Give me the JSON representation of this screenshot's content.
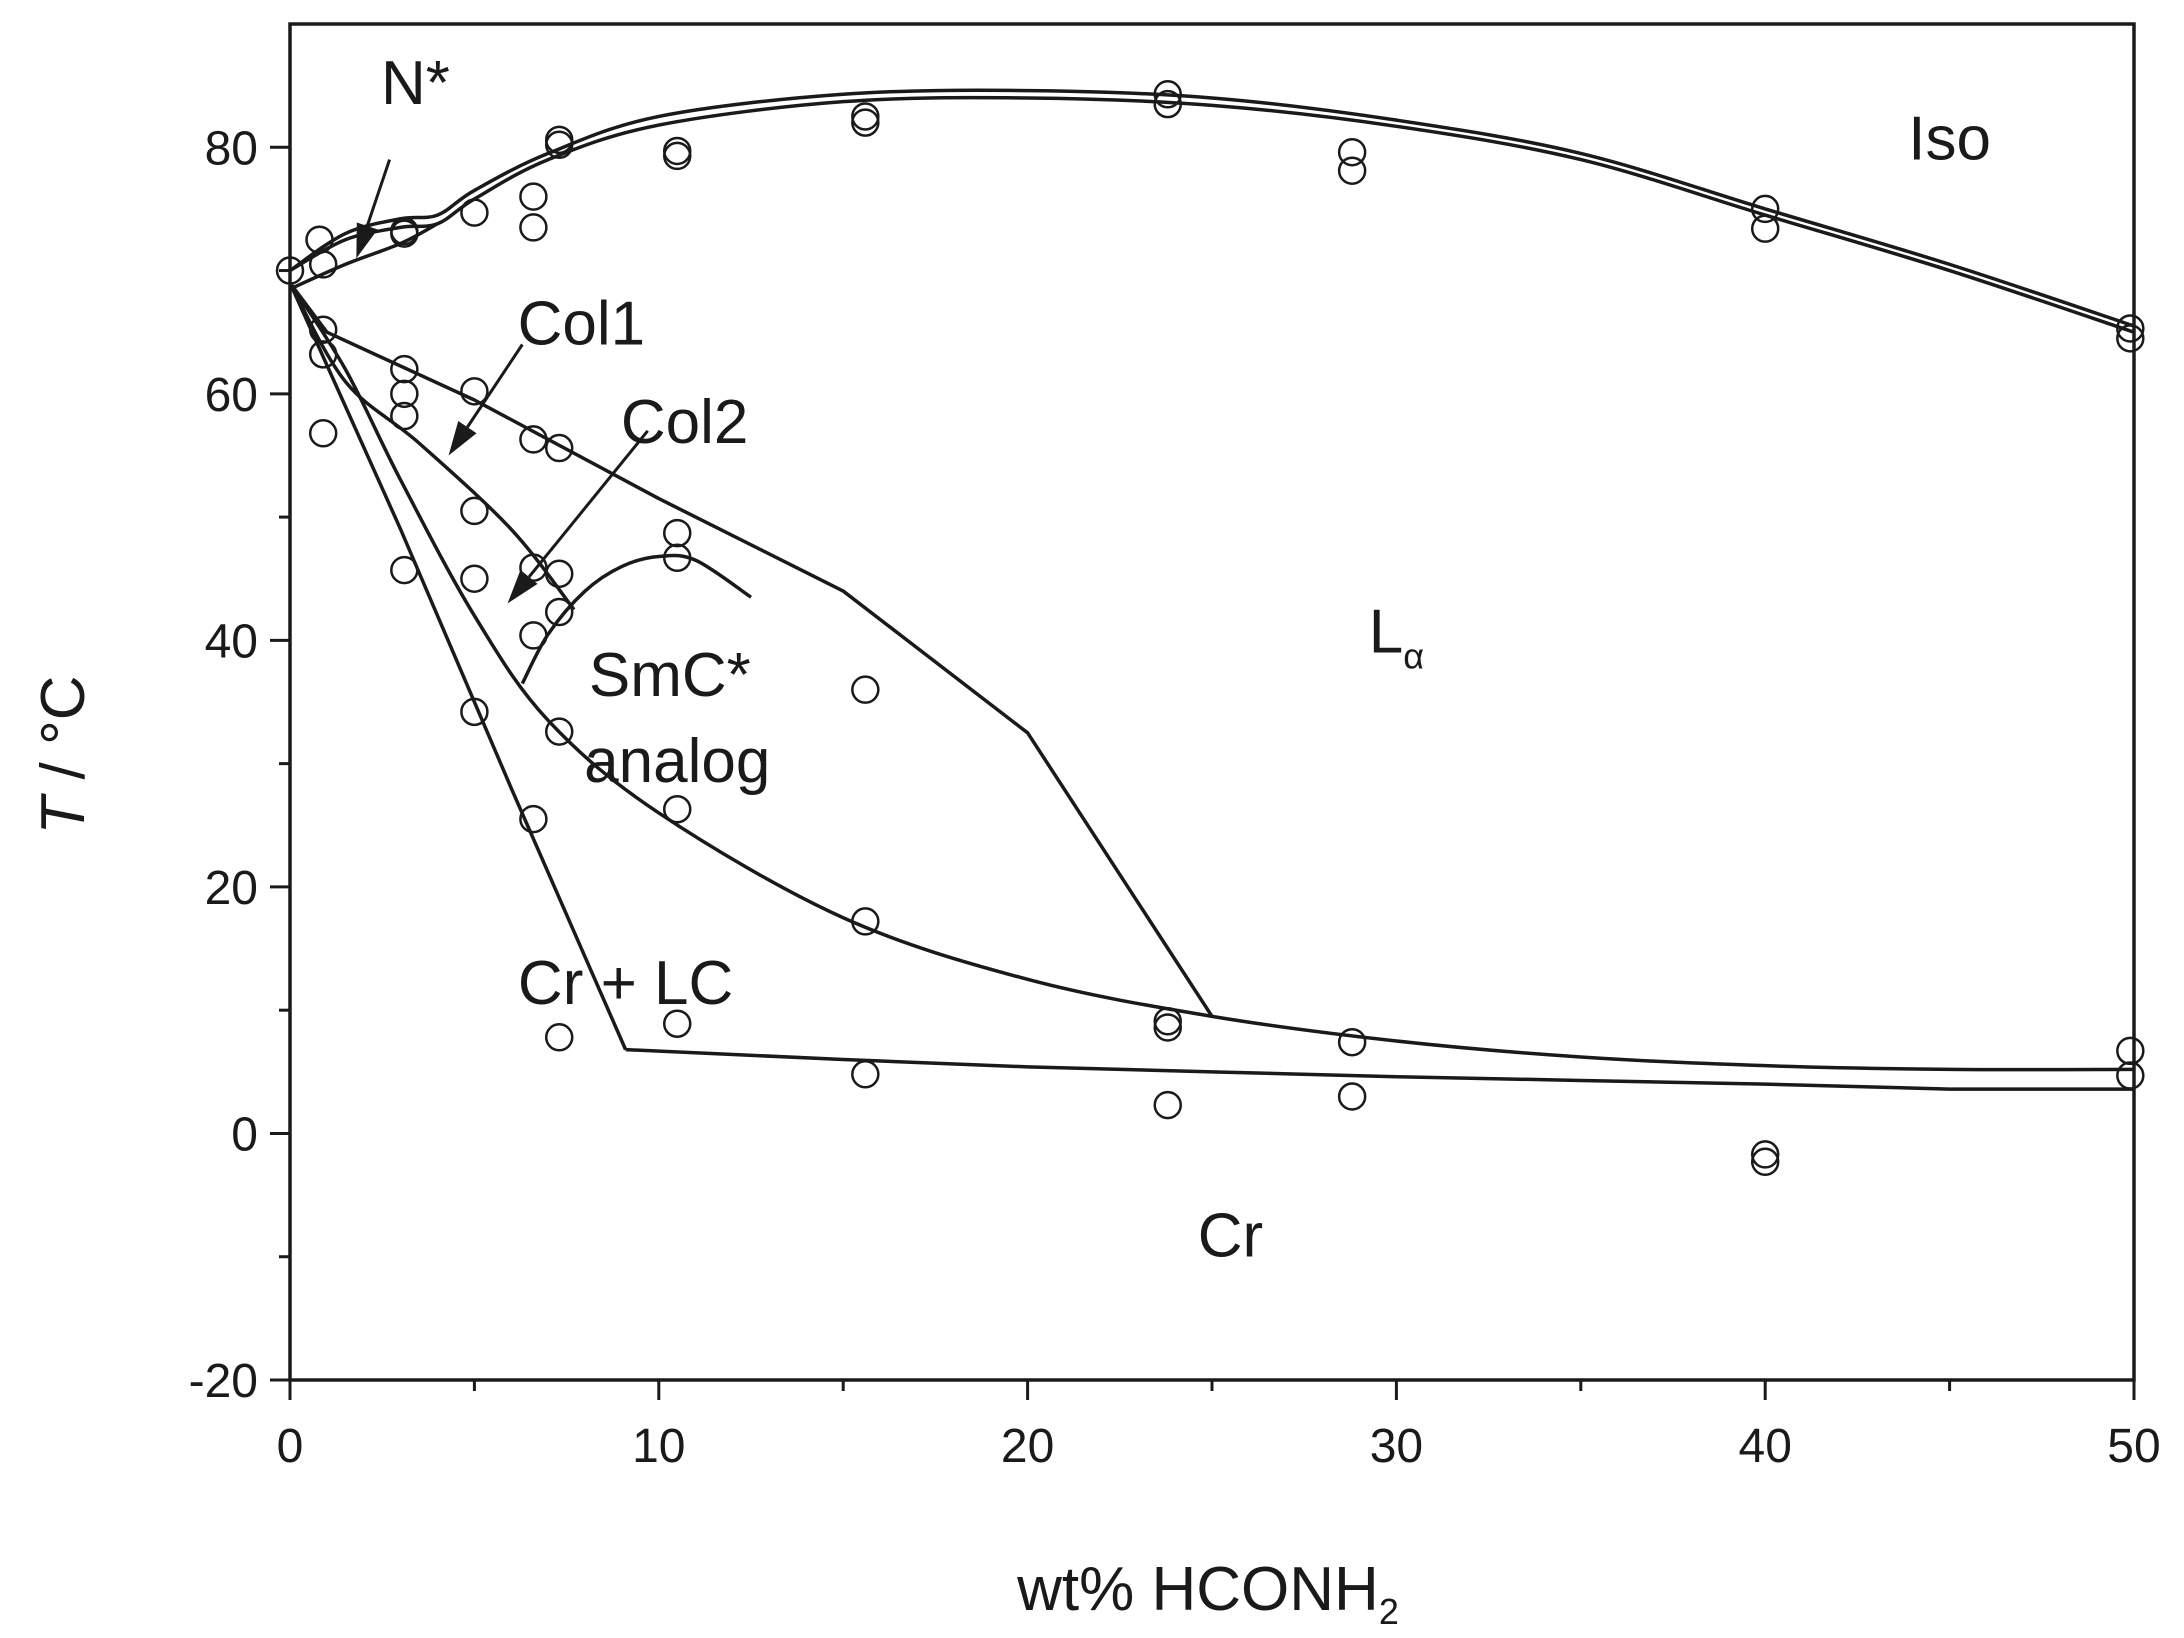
{
  "chart_data": {
    "type": "phase-diagram",
    "xlabel": "wt% HCONH",
    "xlabel_subscript": "2",
    "ylabel_italic": "T",
    "ylabel_rest": " / °C",
    "xlim": [
      0,
      50
    ],
    "ylim": [
      -20,
      90
    ],
    "x_ticks": [
      0,
      10,
      20,
      30,
      40,
      50
    ],
    "x_tick_labels": [
      "0",
      "10",
      "20",
      "30",
      "40",
      "50"
    ],
    "x_minor_ticks": [
      5,
      15,
      25,
      35,
      45
    ],
    "y_ticks": [
      -20,
      0,
      20,
      40,
      60,
      80
    ],
    "y_tick_labels": [
      "-20",
      "0",
      "20",
      "40",
      "60",
      "80"
    ],
    "y_minor_ticks": [
      -10,
      10,
      30,
      50,
      70
    ],
    "regions": [
      {
        "id": "iso",
        "text": "Iso",
        "x": 45,
        "y": 79
      },
      {
        "id": "l-alpha",
        "text": "L",
        "subscript": "α",
        "x": 30,
        "y": 39
      },
      {
        "id": "smc-analog-1",
        "text": "SmC*",
        "x": 10.3,
        "y": 35.5
      },
      {
        "id": "smc-analog-2",
        "text": "analog",
        "x": 10.5,
        "y": 28.5
      },
      {
        "id": "cr-lc",
        "text": "Cr + LC",
        "x": 9.1,
        "y": 10.5
      },
      {
        "id": "cr",
        "text": "Cr",
        "x": 25.5,
        "y": -10
      },
      {
        "id": "n-star",
        "text": "N*",
        "x": 3.4,
        "y": 83.5
      },
      {
        "id": "col1",
        "text": "Col1",
        "x": 7.9,
        "y": 64
      },
      {
        "id": "col2",
        "text": "Col2",
        "x": 10.7,
        "y": 56
      }
    ],
    "arrows": [
      {
        "name": "n-star-arrow",
        "from": [
          2.7,
          79
        ],
        "to": [
          1.8,
          71
        ]
      },
      {
        "name": "col1-arrow",
        "from": [
          6.3,
          64
        ],
        "to": [
          4.3,
          55
        ]
      },
      {
        "name": "col2-arrow",
        "from": [
          9.7,
          57
        ],
        "to": [
          5.9,
          43
        ]
      }
    ],
    "series": [
      {
        "name": "iso-clearing-upper",
        "points": [
          [
            0,
            70
          ],
          [
            1.5,
            73
          ],
          [
            3,
            74.2
          ],
          [
            4,
            74.5
          ],
          [
            5,
            76.5
          ],
          [
            7,
            79.5
          ],
          [
            10,
            82.5
          ],
          [
            15,
            84.3
          ],
          [
            20,
            84.6
          ],
          [
            25,
            84
          ],
          [
            30,
            82.2
          ],
          [
            35,
            79.5
          ],
          [
            40,
            75
          ],
          [
            45,
            70.5
          ],
          [
            50,
            65.5
          ]
        ]
      },
      {
        "name": "iso-clearing-lower",
        "points": [
          [
            0,
            70
          ],
          [
            1.5,
            72.5
          ],
          [
            3,
            73.5
          ],
          [
            4,
            73.8
          ],
          [
            5,
            75.8
          ],
          [
            7,
            79
          ],
          [
            10,
            81.8
          ],
          [
            15,
            83.7
          ],
          [
            20,
            84
          ],
          [
            25,
            83.4
          ],
          [
            30,
            81.7
          ],
          [
            35,
            79
          ],
          [
            40,
            74.5
          ],
          [
            45,
            70
          ],
          [
            50,
            65
          ]
        ]
      },
      {
        "name": "n-star-lower-boundary",
        "points": [
          [
            0,
            68.5
          ],
          [
            1.5,
            70.5
          ],
          [
            3,
            72.2
          ],
          [
            4,
            73.8
          ]
        ]
      },
      {
        "name": "col1-upper-boundary",
        "points": [
          [
            0,
            69
          ],
          [
            1,
            65
          ],
          [
            5,
            59.5
          ],
          [
            10,
            51.5
          ],
          [
            15,
            44
          ],
          [
            20,
            32.5
          ],
          [
            25,
            9.5
          ]
        ]
      },
      {
        "name": "col1-col2-boundary",
        "points": [
          [
            0,
            69
          ],
          [
            1.5,
            61
          ],
          [
            3.5,
            56
          ],
          [
            6,
            49
          ],
          [
            7.7,
            42.5
          ]
        ]
      },
      {
        "name": "smc-dome",
        "points": [
          [
            6.3,
            36.5
          ],
          [
            7,
            40.5
          ],
          [
            8,
            44
          ],
          [
            9,
            46
          ],
          [
            10,
            46.8
          ],
          [
            11,
            46.5
          ],
          [
            12.5,
            43.5
          ]
        ]
      },
      {
        "name": "smc-lower-boundary",
        "points": [
          [
            0,
            69
          ],
          [
            1.5,
            62
          ],
          [
            3,
            53
          ],
          [
            5,
            42
          ],
          [
            7,
            33.5
          ],
          [
            10,
            26
          ],
          [
            15,
            17.5
          ],
          [
            20,
            12.5
          ],
          [
            25,
            9.5
          ],
          [
            30,
            7.5
          ],
          [
            35,
            6.2
          ],
          [
            40,
            5.5
          ],
          [
            45,
            5.2
          ],
          [
            50,
            5.2
          ]
        ]
      },
      {
        "name": "cr-lc-boundary",
        "points": [
          [
            0,
            69
          ],
          [
            3,
            49
          ],
          [
            6,
            28
          ],
          [
            9.1,
            6.8
          ]
        ]
      },
      {
        "name": "cr-solidus",
        "points": [
          [
            9.1,
            6.8
          ],
          [
            15,
            6
          ],
          [
            20,
            5.4
          ],
          [
            25,
            5
          ],
          [
            30,
            4.6
          ],
          [
            35,
            4.3
          ],
          [
            40,
            4
          ],
          [
            45,
            3.6
          ],
          [
            50,
            3.6
          ]
        ]
      }
    ],
    "data_points": [
      [
        0,
        70
      ],
      [
        0.8,
        72.5
      ],
      [
        0.9,
        70.5
      ],
      [
        0.9,
        65.2
      ],
      [
        0.9,
        63.2
      ],
      [
        0.9,
        56.8
      ],
      [
        3.1,
        73.2
      ],
      [
        3.1,
        73
      ],
      [
        3.1,
        62
      ],
      [
        3.1,
        60
      ],
      [
        3.1,
        58.2
      ],
      [
        3.1,
        45.7
      ],
      [
        5,
        74.7
      ],
      [
        5,
        60.2
      ],
      [
        5,
        50.5
      ],
      [
        5,
        45
      ],
      [
        5,
        34.2
      ],
      [
        6.6,
        76
      ],
      [
        6.6,
        73.5
      ],
      [
        6.6,
        56.3
      ],
      [
        6.6,
        45.9
      ],
      [
        6.6,
        40.4
      ],
      [
        6.6,
        25.5
      ],
      [
        7.3,
        80.6
      ],
      [
        7.3,
        80.2
      ],
      [
        7.3,
        55.6
      ],
      [
        7.3,
        45.4
      ],
      [
        7.3,
        42.3
      ],
      [
        7.3,
        32.6
      ],
      [
        7.3,
        7.8
      ],
      [
        10.5,
        79.7
      ],
      [
        10.5,
        79.3
      ],
      [
        10.5,
        48.7
      ],
      [
        10.5,
        46.7
      ],
      [
        10.5,
        26.3
      ],
      [
        10.5,
        8.9
      ],
      [
        15.6,
        82.5
      ],
      [
        15.6,
        82
      ],
      [
        15.6,
        36
      ],
      [
        15.6,
        17.2
      ],
      [
        15.6,
        4.8
      ],
      [
        23.8,
        84.3
      ],
      [
        23.8,
        83.5
      ],
      [
        23.8,
        9.1
      ],
      [
        23.8,
        8.6
      ],
      [
        23.8,
        2.3
      ],
      [
        28.8,
        79.6
      ],
      [
        28.8,
        78.1
      ],
      [
        28.8,
        7.4
      ],
      [
        28.8,
        3
      ],
      [
        40,
        75
      ],
      [
        40,
        73.4
      ],
      [
        40,
        -1.7
      ],
      [
        40,
        -2.3
      ],
      [
        49.9,
        65.3
      ],
      [
        49.9,
        64.5
      ],
      [
        49.9,
        6.7
      ],
      [
        49.9,
        4.7
      ]
    ]
  }
}
